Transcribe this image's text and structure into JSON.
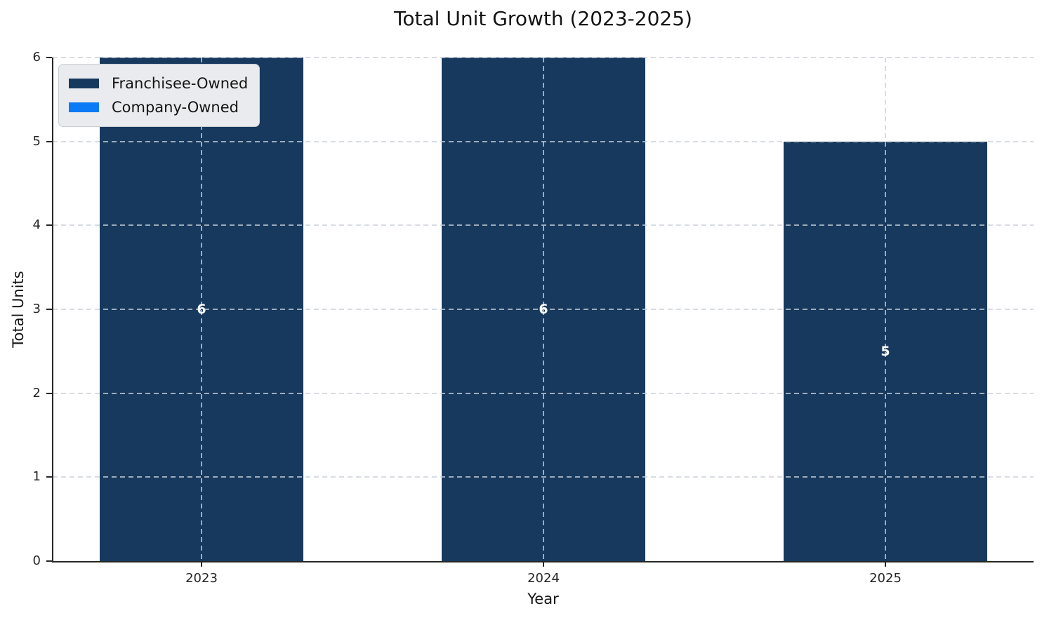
{
  "title": "Total Unit Growth (2023-2025)",
  "chart_data": {
    "type": "bar",
    "stacked": true,
    "title": "Total Unit Growth (2023-2025)",
    "xlabel": "Year",
    "ylabel": "Total Units",
    "categories": [
      "2023",
      "2024",
      "2025"
    ],
    "series": [
      {
        "name": "Franchisee-Owned",
        "color": "#17395E",
        "values": [
          6,
          6,
          5
        ]
      },
      {
        "name": "Company-Owned",
        "color": "#0B7BF5",
        "values": [
          0,
          0,
          0
        ]
      }
    ],
    "totals": [
      6,
      6,
      5
    ],
    "bar_labels": [
      "6",
      "6",
      "5"
    ],
    "ylim": [
      0,
      6
    ],
    "yticks": [
      0,
      1,
      2,
      3,
      4,
      5,
      6
    ],
    "grid": "dashed",
    "grid_color": "#cbd1d8",
    "legend_position": "upper-left",
    "bar_label_color": "#ffffff",
    "axis_color": "#262626"
  }
}
